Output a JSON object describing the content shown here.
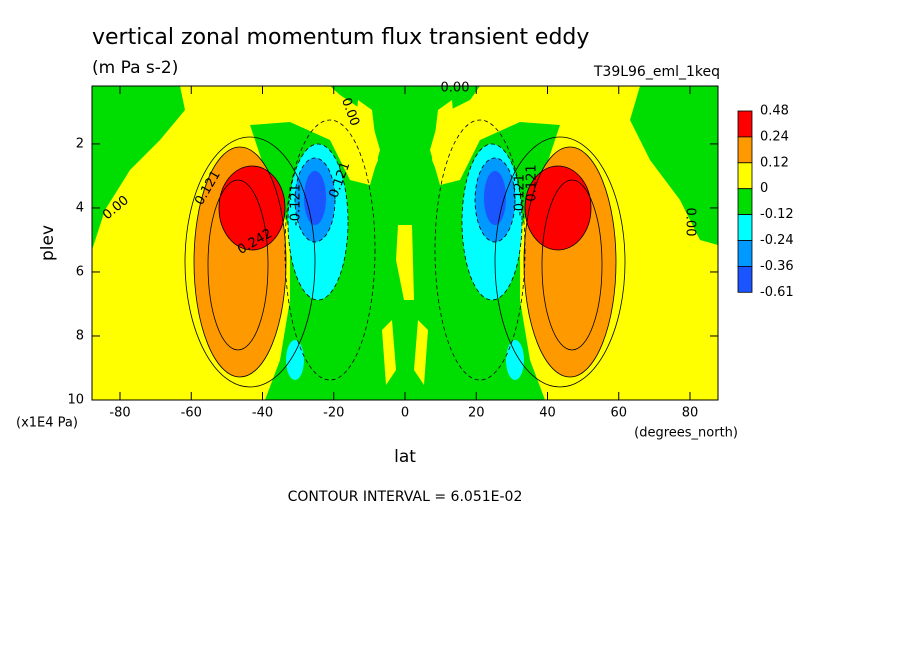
{
  "chart_data": {
    "type": "contour",
    "title": "vertical zonal momentum flux transient eddy",
    "subtitle": "(m Pa s-2)",
    "annotation": "T39L96_eml_1keq",
    "x_label": "lat",
    "x_units": "(degrees_north)",
    "y_label": "plev",
    "y_units": "(x1E4 Pa)",
    "footer": "CONTOUR INTERVAL = 6.051E-02",
    "xlim": [
      -87.86,
      87.86
    ],
    "ylim": [
      10,
      0.19
    ],
    "xticks": [
      -80,
      -60,
      -40,
      -20,
      0,
      20,
      40,
      60,
      80
    ],
    "yticks": [
      2,
      4,
      6,
      8,
      10
    ],
    "levels": [
      0.48,
      0.24,
      0.12,
      0,
      -0.12,
      -0.24,
      -0.36,
      -0.61
    ],
    "colors": [
      "#ff0000",
      "#ff9900",
      "#ffff00",
      "#00dd00",
      "#00ffff",
      "#0099ff",
      "#1a55ff"
    ],
    "contour_labels": [
      "0.00",
      "0.00",
      "0.00",
      "0.00",
      "0.121",
      "0.242",
      "0.121",
      "-0.121",
      "-0.121",
      "0.121"
    ]
  }
}
